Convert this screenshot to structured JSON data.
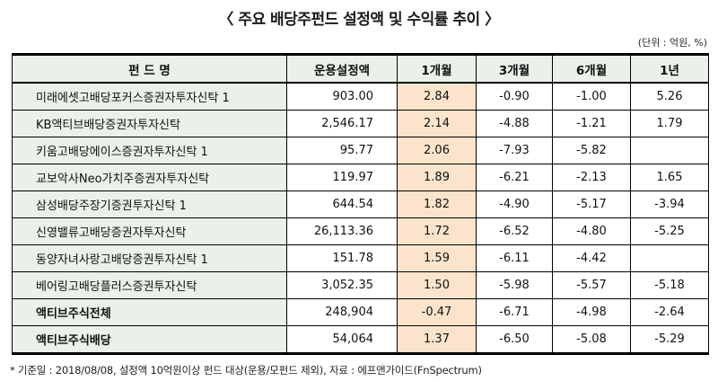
{
  "title": "〈 주요 배당주펀드 설정액 및 수익률 추이 〉",
  "unit_note": "(단위 : 억원, %)",
  "footnote": "* 기준일 : 2018/08/08, 설정액 10억원이상 펀드 대상(운용/모펀드 제외), 자료 : 에프앤가이드(FnSpectrum)",
  "colors": {
    "header_bg": "#e9f1e9",
    "name_column_bg": "#e9f1e9",
    "highlight_column_bg": "#fbe4cb",
    "border": "#000000"
  },
  "chart_data": {
    "type": "table",
    "title": "주요 배당주펀드 설정액 및 수익률 추이",
    "unit": "억원, %",
    "columns": [
      "펀 드 명",
      "운용설정액",
      "1개월",
      "3개월",
      "6개월",
      "1년"
    ],
    "highlighted_column": "1개월",
    "rows": [
      {
        "name": "미래에셋고배당포커스증권자투자신탁 1",
        "values": [
          "903.00",
          "2.84",
          "-0.90",
          "-1.00",
          "5.26"
        ]
      },
      {
        "name": "KB액티브배당증권자투자신탁",
        "values": [
          "2,546.17",
          "2.14",
          "-4.88",
          "-1.21",
          "1.79"
        ]
      },
      {
        "name": "키움고배당에이스증권자투자신탁 1",
        "values": [
          "95.77",
          "2.06",
          "-7.93",
          "-5.82",
          ""
        ]
      },
      {
        "name": "교보악사Neo가치주증권자투자신탁",
        "values": [
          "119.97",
          "1.89",
          "-6.21",
          "-2.13",
          "1.65"
        ]
      },
      {
        "name": "삼성배당주장기증권투자신탁 1",
        "values": [
          "644.54",
          "1.82",
          "-4.90",
          "-5.17",
          "-3.94"
        ]
      },
      {
        "name": "신영밸류고배당증권자투자신탁",
        "values": [
          "26,113.36",
          "1.72",
          "-6.52",
          "-4.80",
          "-5.25"
        ]
      },
      {
        "name": "동양자녀사랑고배당증권투자신탁 1",
        "values": [
          "151.78",
          "1.59",
          "-6.11",
          "-4.42",
          ""
        ]
      },
      {
        "name": "베어링고배당플러스증권투자신탁",
        "values": [
          "3,052.35",
          "1.50",
          "-5.98",
          "-5.57",
          "-5.18"
        ]
      },
      {
        "name": "액티브주식전체",
        "values": [
          "248,904",
          "-0.47",
          "-6.71",
          "-4.98",
          "-2.64"
        ]
      },
      {
        "name": "액티브주식배당",
        "values": [
          "54,064",
          "1.37",
          "-6.50",
          "-5.08",
          "-5.29"
        ]
      }
    ]
  }
}
